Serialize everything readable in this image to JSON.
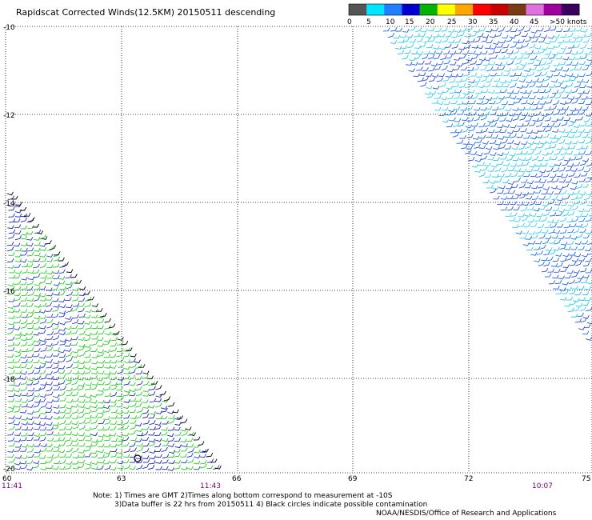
{
  "title": "Rapidscat Corrected Winds(12.5KM) 20150511 descending",
  "legend": {
    "colors": [
      "#555555",
      "#00e6ff",
      "#1f7fff",
      "#0000d0",
      "#00b400",
      "#ffff00",
      "#ffa500",
      "#ff0000",
      "#c80000",
      "#7a3a14",
      "#e070e0",
      "#a000a0",
      "#3a0060"
    ],
    "labels": [
      "0",
      "5",
      "10",
      "15",
      "20",
      "25",
      "30",
      "35",
      "40",
      "45",
      ">50 knots"
    ]
  },
  "axes": {
    "lon_labels": [
      "60",
      "63",
      "66",
      "69",
      "72",
      "75"
    ],
    "lat_labels": [
      "-10",
      "-12",
      "-14",
      "-16",
      "-18",
      "-20"
    ]
  },
  "times": {
    "t1": "11:41",
    "t2": "11:43",
    "t3": "10:07"
  },
  "notes": {
    "line1": "Note: 1) Times are GMT 2)Times along bottom correspond to measurement at -10S",
    "line2": "3)Data buffer is 22 hrs from 20150511 4) Black circles indicate possible contamination",
    "line3": "NOAA/NESDIS/Office of Research and Applications"
  },
  "swaths": {
    "west": {
      "edge_color": "#000000",
      "colors": [
        "#22cc22",
        "#1a22b0",
        "#22cc22",
        "#2a3ad0",
        "#22cc22"
      ]
    },
    "east": {
      "colors": [
        "#1a60e0",
        "#22c8e8",
        "#2a50d8",
        "#30d0f0",
        "#1a70ee"
      ]
    }
  }
}
